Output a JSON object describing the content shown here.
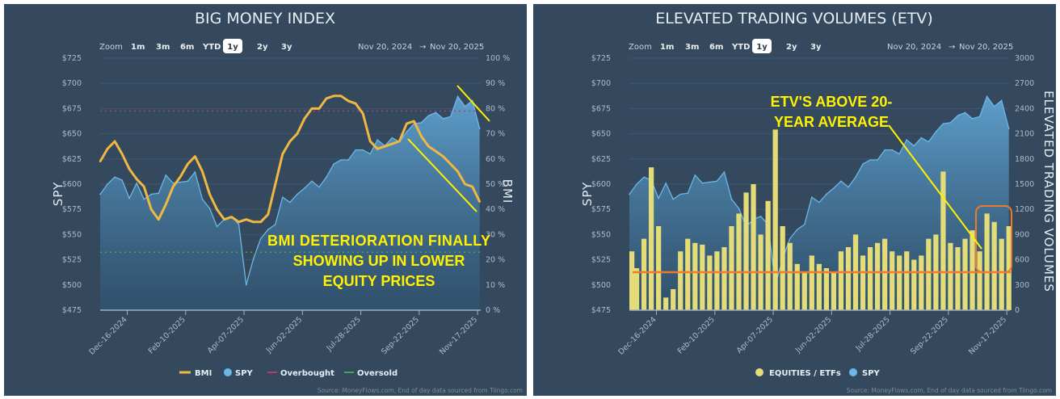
{
  "colors": {
    "background": "#34495e",
    "bmi": "#f0b840",
    "spy_line": "#6bb8e8",
    "spy_fill_top": "#5e9fcc",
    "spy_fill_bottom": "#2f5575",
    "overbought": "#b0416a",
    "oversold": "#3fa654",
    "etv": "#e4dc78",
    "annotation": "#fff200",
    "etv_average": "#f07a2a"
  },
  "zoom": {
    "label": "Zoom",
    "buttons": [
      "1m",
      "3m",
      "6m",
      "YTD",
      "1y",
      "2y",
      "3y"
    ],
    "selected": "1y"
  },
  "date_range": {
    "from": "Nov 20, 2024",
    "arrow": "→",
    "to": "Nov 20, 2025"
  },
  "source": "Source: MoneyFlows.com, End of day data sourced from Tiingo.com",
  "x_ticks": [
    "Dec-16-2024",
    "Feb-10-2025",
    "Apr-07-2025",
    "Jun-02-2025",
    "Jul-28-2025",
    "Sep-22-2025",
    "Nov-17-2025"
  ],
  "dates": [
    "2024-11-20",
    "2024-11-27",
    "2024-12-04",
    "2024-12-11",
    "2024-12-18",
    "2024-12-25",
    "2025-01-01",
    "2025-01-08",
    "2025-01-15",
    "2025-01-22",
    "2025-01-29",
    "2025-02-05",
    "2025-02-12",
    "2025-02-19",
    "2025-02-26",
    "2025-03-05",
    "2025-03-12",
    "2025-03-19",
    "2025-03-26",
    "2025-04-02",
    "2025-04-09",
    "2025-04-16",
    "2025-04-23",
    "2025-04-30",
    "2025-05-07",
    "2025-05-14",
    "2025-05-21",
    "2025-05-28",
    "2025-06-04",
    "2025-06-11",
    "2025-06-18",
    "2025-06-25",
    "2025-07-02",
    "2025-07-09",
    "2025-07-16",
    "2025-07-23",
    "2025-07-30",
    "2025-08-06",
    "2025-08-13",
    "2025-08-20",
    "2025-08-27",
    "2025-09-03",
    "2025-09-10",
    "2025-09-17",
    "2025-09-24",
    "2025-10-01",
    "2025-10-08",
    "2025-10-15",
    "2025-10-22",
    "2025-10-29",
    "2025-11-05",
    "2025-11-12",
    "2025-11-19"
  ],
  "chart_data": [
    {
      "type": "line",
      "title": "BIG MONEY INDEX",
      "ylabel_left": "SPY",
      "ylabel_right": "BMI",
      "ylim_left": [
        475,
        725
      ],
      "yticks_left": [
        "$725",
        "$700",
        "$675",
        "$650",
        "$625",
        "$600",
        "$575",
        "$550",
        "$525",
        "$500",
        "$475"
      ],
      "ylim_right": [
        0,
        100
      ],
      "yticks_right": [
        "100 %",
        "90 %",
        "80 %",
        "70 %",
        "60 %",
        "50 %",
        "40 %",
        "30 %",
        "20 %",
        "10 %",
        "0 %"
      ],
      "grid": true,
      "legend_placement": "bottom",
      "series": [
        {
          "name": "BMI",
          "axis": "right",
          "values": [
            59,
            64,
            67,
            62,
            56,
            52,
            49,
            40,
            36,
            42,
            49,
            53,
            58,
            61,
            55,
            46,
            40,
            36,
            37,
            35,
            36,
            35,
            35,
            38,
            50,
            62,
            67,
            70,
            76,
            80,
            80,
            84,
            85,
            85,
            83,
            82,
            78,
            67,
            64,
            65,
            66,
            67,
            74,
            75,
            69,
            65,
            63,
            61,
            58,
            55,
            50,
            49,
            43
          ]
        },
        {
          "name": "SPY",
          "axis": "left",
          "values": [
            590,
            600,
            607,
            604,
            586,
            601,
            585,
            590,
            591,
            609,
            601,
            602,
            603,
            612,
            585,
            576,
            558,
            565,
            568,
            560,
            500,
            526,
            546,
            555,
            560,
            587,
            582,
            590,
            596,
            603,
            597,
            607,
            620,
            624,
            624,
            634,
            634,
            630,
            644,
            638,
            646,
            642,
            652,
            660,
            661,
            668,
            671,
            665,
            667,
            687,
            677,
            683,
            655
          ]
        }
      ],
      "reference_lines": [
        {
          "name": "Overbought",
          "value": 79
        },
        {
          "name": "Oversold",
          "value": 23
        }
      ],
      "annotation": [
        "BMI DETERIORATION FINALLY",
        "SHOWING UP IN LOWER",
        "EQUITY PRICES"
      ]
    },
    {
      "type": "bar",
      "title": "ELEVATED TRADING VOLUMES (ETV)",
      "ylabel_left": "SPY",
      "ylabel_right": "ELEVATED TRADING VOLUMES",
      "ylim_left": [
        475,
        725
      ],
      "yticks_left": [
        "$725",
        "$700",
        "$675",
        "$650",
        "$625",
        "$600",
        "$575",
        "$550",
        "$525",
        "$500",
        "$475"
      ],
      "ylim_right": [
        0,
        3000
      ],
      "yticks_right": [
        "3000",
        "2700",
        "2400",
        "2100",
        "1800",
        "1500",
        "1200",
        "900",
        "600",
        "300",
        "0"
      ],
      "grid": true,
      "legend_placement": "bottom",
      "series": [
        {
          "name": "EQUITIES / ETFs",
          "axis": "right",
          "values": [
            700,
            500,
            850,
            1700,
            1000,
            150,
            250,
            700,
            850,
            800,
            780,
            650,
            700,
            750,
            1000,
            1150,
            1400,
            1500,
            900,
            1300,
            2150,
            1000,
            800,
            550,
            450,
            650,
            550,
            500,
            450,
            700,
            750,
            900,
            650,
            750,
            800,
            850,
            700,
            650,
            700,
            600,
            650,
            850,
            900,
            1650,
            800,
            750,
            850,
            950,
            700,
            1150,
            1050,
            850,
            1000
          ]
        },
        {
          "name": "SPY",
          "axis": "left",
          "values": [
            590,
            600,
            607,
            604,
            586,
            601,
            585,
            590,
            591,
            609,
            601,
            602,
            603,
            612,
            585,
            576,
            558,
            565,
            568,
            560,
            500,
            526,
            546,
            555,
            560,
            587,
            582,
            590,
            596,
            603,
            597,
            607,
            620,
            624,
            624,
            634,
            634,
            630,
            644,
            638,
            646,
            642,
            652,
            660,
            661,
            668,
            671,
            665,
            667,
            687,
            677,
            683,
            655
          ]
        }
      ],
      "reference_lines": [
        {
          "name": "20-year average",
          "value": 450
        }
      ],
      "annotation": [
        "ETV'S ABOVE 20-",
        "YEAR AVERAGE"
      ]
    }
  ]
}
